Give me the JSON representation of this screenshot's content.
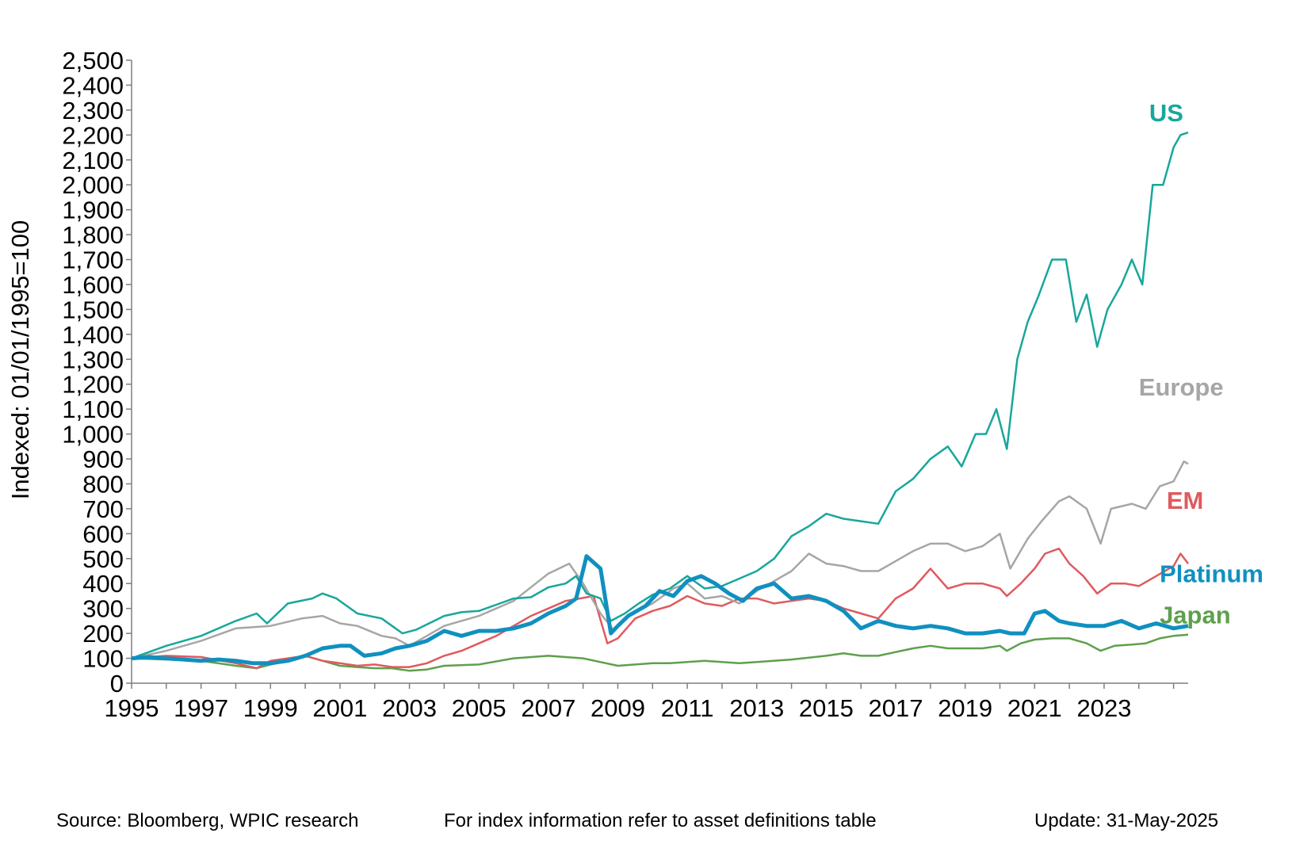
{
  "chart_data": {
    "type": "line",
    "ylabel": "Indexed: 01/01/1995=100",
    "xlabel": "",
    "ylim": [
      0,
      2500
    ],
    "xlim": [
      1995,
      2025.42
    ],
    "y_ticks": [
      0,
      100,
      200,
      300,
      400,
      500,
      600,
      700,
      800,
      900,
      1000,
      1100,
      1200,
      1300,
      1400,
      1500,
      1600,
      1700,
      1800,
      1900,
      2000,
      2100,
      2200,
      2300,
      2400,
      2500
    ],
    "y_tick_labels": [
      "0",
      "100",
      "200",
      "300",
      "400",
      "500",
      "600",
      "700",
      "800",
      "900",
      "1,000",
      "1,100",
      "1,200",
      "1,300",
      "1,400",
      "1,500",
      "1,600",
      "1,700",
      "1,800",
      "1,900",
      "2,000",
      "2,100",
      "2,200",
      "2,300",
      "2,400",
      "2,500"
    ],
    "x_ticks": [
      1995,
      1997,
      1999,
      2001,
      2003,
      2005,
      2007,
      2009,
      2011,
      2013,
      2015,
      2017,
      2019,
      2021,
      2023
    ],
    "x_tick_labels": [
      "1995",
      "1997",
      "1999",
      "2001",
      "2003",
      "2005",
      "2007",
      "2009",
      "2011",
      "2013",
      "2015",
      "2017",
      "2019",
      "2021",
      "2023"
    ],
    "grid": false,
    "series": [
      {
        "name": "US",
        "color": "#18A79B",
        "label_pos": [
          2024.3,
          2255
        ],
        "x": [
          1995,
          1996,
          1997,
          1998,
          1998.6,
          1998.9,
          1999.5,
          2000.2,
          2000.5,
          2000.9,
          2001.5,
          2002.2,
          2002.5,
          2002.8,
          2003.2,
          2004,
          2004.5,
          2005,
          2005.5,
          2006,
          2006.5,
          2007,
          2007.5,
          2007.8,
          2008.1,
          2008.5,
          2008.8,
          2009.2,
          2009.6,
          2010,
          2010.5,
          2011,
          2011.5,
          2012,
          2012.5,
          2013,
          2013.5,
          2014,
          2014.5,
          2015,
          2015.5,
          2016,
          2016.5,
          2017,
          2017.5,
          2018,
          2018.5,
          2018.9,
          2019.3,
          2019.6,
          2019.9,
          2020.2,
          2020.5,
          2020.8,
          2021.1,
          2021.5,
          2021.9,
          2022.2,
          2022.5,
          2022.8,
          2023.1,
          2023.5,
          2023.8,
          2024.1,
          2024.4,
          2024.7,
          2025,
          2025.2,
          2025.42
        ],
        "y": [
          100,
          150,
          190,
          250,
          280,
          240,
          320,
          340,
          360,
          340,
          280,
          260,
          230,
          200,
          215,
          270,
          285,
          290,
          315,
          340,
          345,
          385,
          400,
          430,
          360,
          340,
          250,
          280,
          320,
          355,
          380,
          430,
          380,
          390,
          420,
          450,
          500,
          590,
          630,
          680,
          660,
          650,
          640,
          770,
          820,
          900,
          950,
          870,
          1000,
          1000,
          1100,
          940,
          1300,
          1450,
          1550,
          1700,
          1700,
          1450,
          1560,
          1350,
          1500,
          1600,
          1700,
          1600,
          2000,
          2000,
          2150,
          2200,
          2210
        ]
      },
      {
        "name": "Europe",
        "color": "#A6A6A6",
        "label_pos": [
          2024.0,
          1155
        ],
        "x": [
          1995,
          1996,
          1997,
          1998,
          1999,
          1999.9,
          2000.5,
          2001,
          2001.5,
          2002.2,
          2002.6,
          2003,
          2003.5,
          2004,
          2005,
          2006,
          2007,
          2007.6,
          2008,
          2008.5,
          2008.9,
          2009.3,
          2010,
          2010.6,
          2011,
          2011.5,
          2012,
          2012.5,
          2013,
          2014,
          2014.5,
          2015,
          2015.5,
          2016,
          2016.5,
          2017,
          2017.5,
          2018,
          2018.5,
          2019,
          2019.5,
          2020,
          2020.3,
          2020.8,
          2021.2,
          2021.7,
          2022,
          2022.5,
          2022.9,
          2023.2,
          2023.8,
          2024.2,
          2024.6,
          2025,
          2025.3,
          2025.42
        ],
        "y": [
          100,
          130,
          170,
          220,
          230,
          260,
          270,
          240,
          230,
          190,
          180,
          150,
          190,
          230,
          270,
          330,
          440,
          480,
          400,
          280,
          210,
          270,
          320,
          380,
          400,
          340,
          350,
          320,
          370,
          450,
          520,
          480,
          470,
          450,
          450,
          490,
          530,
          560,
          560,
          530,
          550,
          600,
          460,
          580,
          650,
          730,
          750,
          700,
          560,
          700,
          720,
          700,
          790,
          810,
          890,
          880
        ]
      },
      {
        "name": "EM",
        "color": "#E05A5E",
        "label_pos": [
          2024.8,
          700
        ],
        "x": [
          1995,
          1996,
          1997,
          1998,
          1998.6,
          1999,
          1999.5,
          2000,
          2000.5,
          2001,
          2001.5,
          2002,
          2002.5,
          2003,
          2003.5,
          2004,
          2004.5,
          2005,
          2005.5,
          2006,
          2006.5,
          2007,
          2007.5,
          2007.9,
          2008.3,
          2008.7,
          2009,
          2009.5,
          2010,
          2010.5,
          2011,
          2011.5,
          2012,
          2012.5,
          2013,
          2013.5,
          2014,
          2014.5,
          2015,
          2015.5,
          2016,
          2016.5,
          2017,
          2017.5,
          2018,
          2018.5,
          2019,
          2019.5,
          2020,
          2020.2,
          2020.6,
          2021,
          2021.3,
          2021.7,
          2022,
          2022.4,
          2022.8,
          2023.2,
          2023.6,
          2024,
          2024.5,
          2025,
          2025.2,
          2025.42
        ],
        "y": [
          100,
          110,
          105,
          80,
          60,
          90,
          100,
          110,
          90,
          80,
          70,
          75,
          65,
          65,
          80,
          110,
          130,
          160,
          190,
          230,
          270,
          300,
          330,
          340,
          350,
          160,
          180,
          260,
          290,
          310,
          350,
          320,
          310,
          340,
          340,
          320,
          330,
          340,
          330,
          300,
          280,
          260,
          340,
          380,
          460,
          380,
          400,
          400,
          380,
          350,
          400,
          460,
          520,
          540,
          480,
          430,
          360,
          400,
          400,
          390,
          430,
          470,
          520,
          480
        ]
      },
      {
        "name": "Platinum",
        "color": "#1090C0",
        "label_pos": [
          2024.6,
          405
        ],
        "x": [
          1995,
          1995.5,
          1996,
          1996.5,
          1997,
          1997.5,
          1998,
          1998.5,
          1999,
          1999.5,
          2000,
          2000.5,
          2001,
          2001.3,
          2001.7,
          2002.2,
          2002.6,
          2003,
          2003.5,
          2004,
          2004.5,
          2005,
          2005.5,
          2006,
          2006.5,
          2007,
          2007.5,
          2007.8,
          2008.1,
          2008.5,
          2008.8,
          2009,
          2009.3,
          2009.8,
          2010.2,
          2010.6,
          2011,
          2011.4,
          2011.8,
          2012.2,
          2012.6,
          2013,
          2013.5,
          2014,
          2014.5,
          2015,
          2015.5,
          2016,
          2016.5,
          2017,
          2017.5,
          2018,
          2018.5,
          2019,
          2019.5,
          2020,
          2020.3,
          2020.7,
          2021,
          2021.3,
          2021.7,
          2022,
          2022.5,
          2023,
          2023.5,
          2024,
          2024.5,
          2025,
          2025.42
        ],
        "y": [
          100,
          105,
          100,
          95,
          90,
          95,
          90,
          80,
          80,
          90,
          110,
          140,
          150,
          150,
          110,
          120,
          140,
          150,
          170,
          210,
          190,
          210,
          210,
          220,
          240,
          280,
          310,
          340,
          510,
          460,
          200,
          230,
          270,
          310,
          370,
          350,
          410,
          430,
          400,
          360,
          330,
          380,
          400,
          340,
          350,
          330,
          290,
          220,
          250,
          230,
          220,
          230,
          220,
          200,
          200,
          210,
          200,
          200,
          280,
          290,
          250,
          240,
          230,
          230,
          250,
          220,
          240,
          220,
          230
        ]
      },
      {
        "name": "Japan",
        "color": "#5EA04C",
        "label_pos": [
          2024.6,
          240
        ],
        "x": [
          1995,
          1996,
          1997,
          1998,
          1998.6,
          1999,
          1999.5,
          2000,
          2000.5,
          2001,
          2001.5,
          2002,
          2002.5,
          2003,
          2003.5,
          2004,
          2005,
          2006,
          2007,
          2007.5,
          2008,
          2008.5,
          2009,
          2009.5,
          2010,
          2010.5,
          2011,
          2011.5,
          2012,
          2012.5,
          2013,
          2014,
          2015,
          2015.5,
          2016,
          2016.5,
          2017,
          2017.5,
          2018,
          2018.5,
          2019,
          2019.5,
          2020,
          2020.2,
          2020.6,
          2021,
          2021.5,
          2022,
          2022.5,
          2022.9,
          2023.3,
          2023.8,
          2024.2,
          2024.6,
          2025,
          2025.42
        ],
        "y": [
          100,
          95,
          90,
          70,
          60,
          75,
          90,
          110,
          90,
          70,
          65,
          60,
          60,
          50,
          55,
          70,
          75,
          100,
          110,
          105,
          100,
          85,
          70,
          75,
          80,
          80,
          85,
          90,
          85,
          80,
          85,
          95,
          110,
          120,
          110,
          110,
          125,
          140,
          150,
          140,
          140,
          140,
          150,
          130,
          160,
          175,
          180,
          180,
          160,
          130,
          150,
          155,
          160,
          180,
          190,
          195
        ]
      }
    ]
  },
  "footer": {
    "source": "Source: Bloomberg, WPIC research",
    "note": "For index information refer to asset definitions table",
    "update": "Update: 31-May-2025"
  }
}
